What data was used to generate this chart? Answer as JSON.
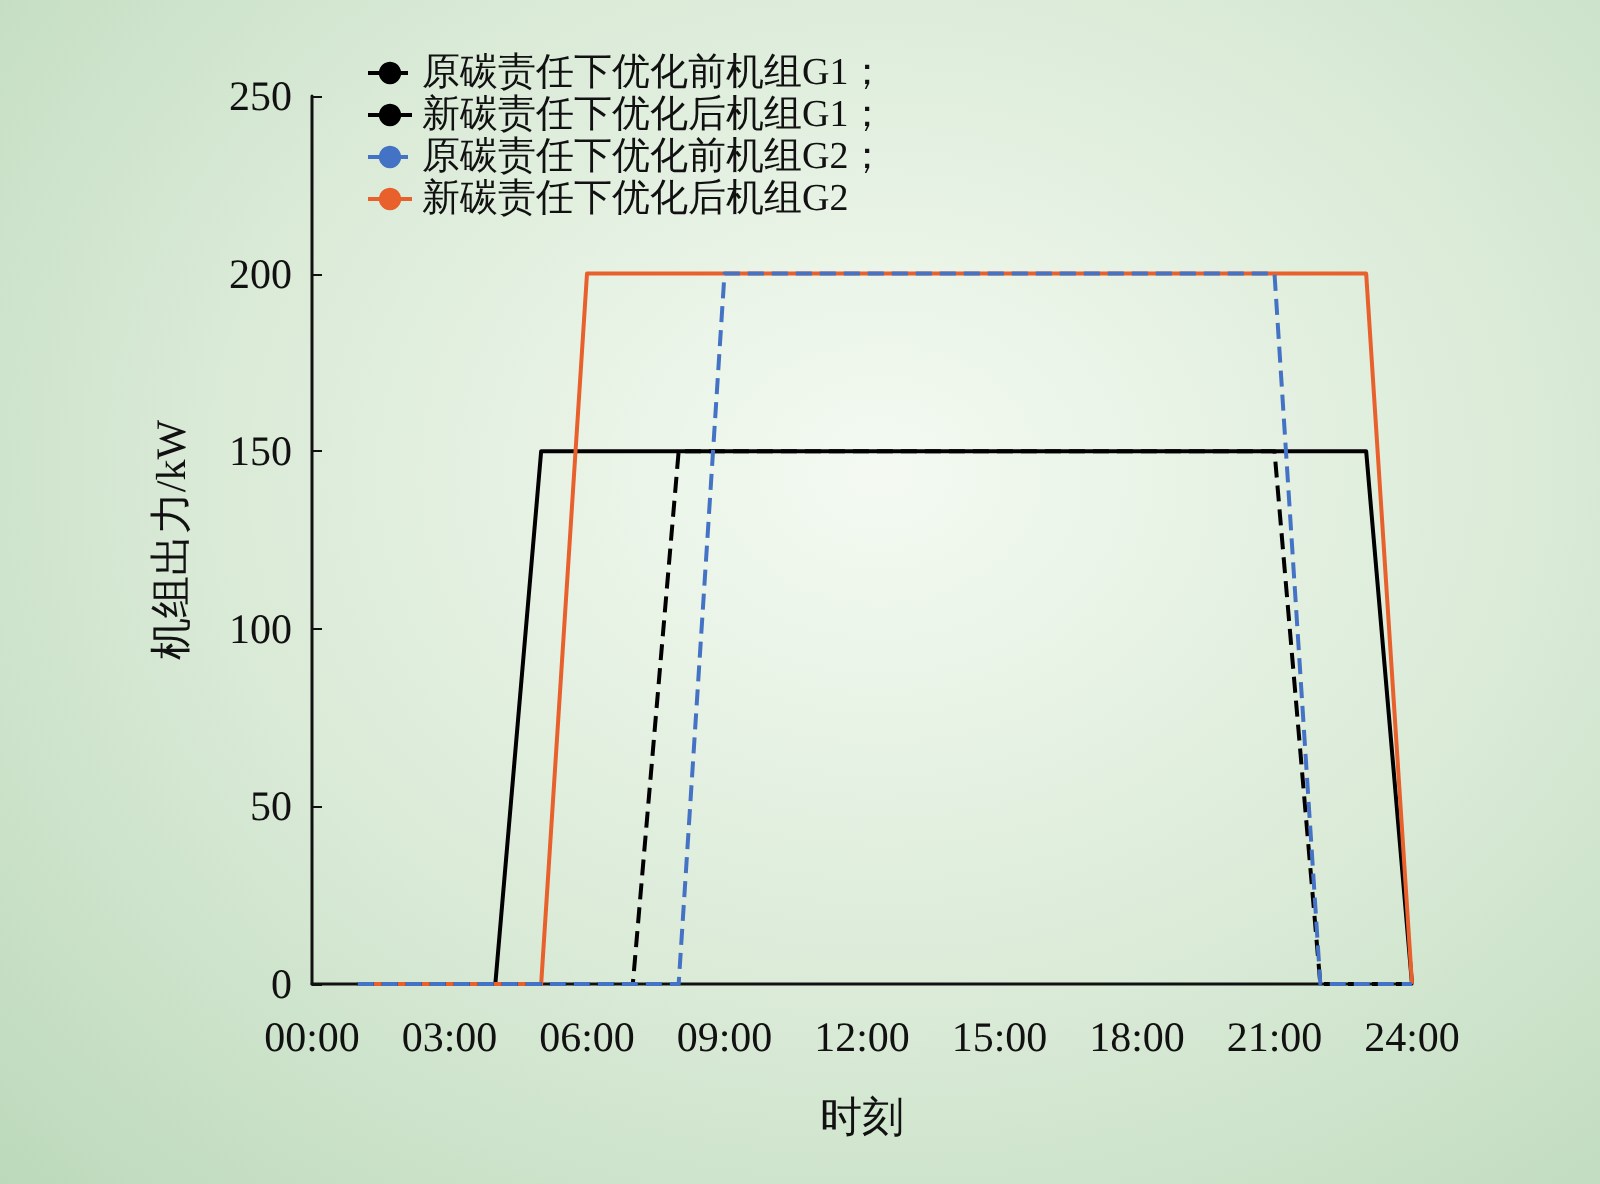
{
  "chart_data": {
    "type": "line",
    "xlabel": "时刻",
    "ylabel": "机组出力/kW",
    "x": [
      1,
      2,
      3,
      4,
      5,
      6,
      7,
      8,
      9,
      10,
      11,
      12,
      13,
      14,
      15,
      16,
      17,
      18,
      19,
      20,
      21,
      22,
      23,
      24
    ],
    "xlim": [
      0,
      24
    ],
    "xticks": [
      {
        "value": 0,
        "label": "00:00"
      },
      {
        "value": 3,
        "label": "03:00"
      },
      {
        "value": 6,
        "label": "06:00"
      },
      {
        "value": 9,
        "label": "09:00"
      },
      {
        "value": 12,
        "label": "12:00"
      },
      {
        "value": 15,
        "label": "15:00"
      },
      {
        "value": 18,
        "label": "18:00"
      },
      {
        "value": 21,
        "label": "21:00"
      },
      {
        "value": 24,
        "label": "24:00"
      }
    ],
    "ylim": [
      0,
      250
    ],
    "yticks": [
      0,
      50,
      100,
      150,
      200,
      250
    ],
    "grid": false,
    "legend": "top left",
    "marker": "none",
    "series": [
      {
        "name": "原碳责任下优化前机组G1；",
        "color": "#000000",
        "line_style": "dashed",
        "values": [
          0,
          0,
          0,
          0,
          0,
          0,
          0,
          150,
          150,
          150,
          150,
          150,
          150,
          150,
          150,
          150,
          150,
          150,
          150,
          150,
          150,
          0,
          0,
          0
        ]
      },
      {
        "name": "新碳责任下优化后机组G1；",
        "color": "#000000",
        "line_style": "solid",
        "values": [
          0,
          0,
          0,
          0,
          150,
          150,
          150,
          150,
          150,
          150,
          150,
          150,
          150,
          150,
          150,
          150,
          150,
          150,
          150,
          150,
          150,
          150,
          150,
          0
        ]
      },
      {
        "name": "原碳责任下优化前机组G2；",
        "color": "#4472c4",
        "line_style": "dashed",
        "values": [
          0,
          0,
          0,
          0,
          0,
          0,
          0,
          0,
          200,
          200,
          200,
          200,
          200,
          200,
          200,
          200,
          200,
          200,
          200,
          200,
          200,
          0,
          0,
          0
        ]
      },
      {
        "name": "新碳责任下优化后机组G2",
        "color": "#e8602c",
        "line_style": "solid",
        "values": [
          0,
          0,
          0,
          0,
          0,
          200,
          200,
          200,
          200,
          200,
          200,
          200,
          200,
          200,
          200,
          200,
          200,
          200,
          200,
          200,
          200,
          200,
          200,
          0
        ]
      }
    ]
  }
}
